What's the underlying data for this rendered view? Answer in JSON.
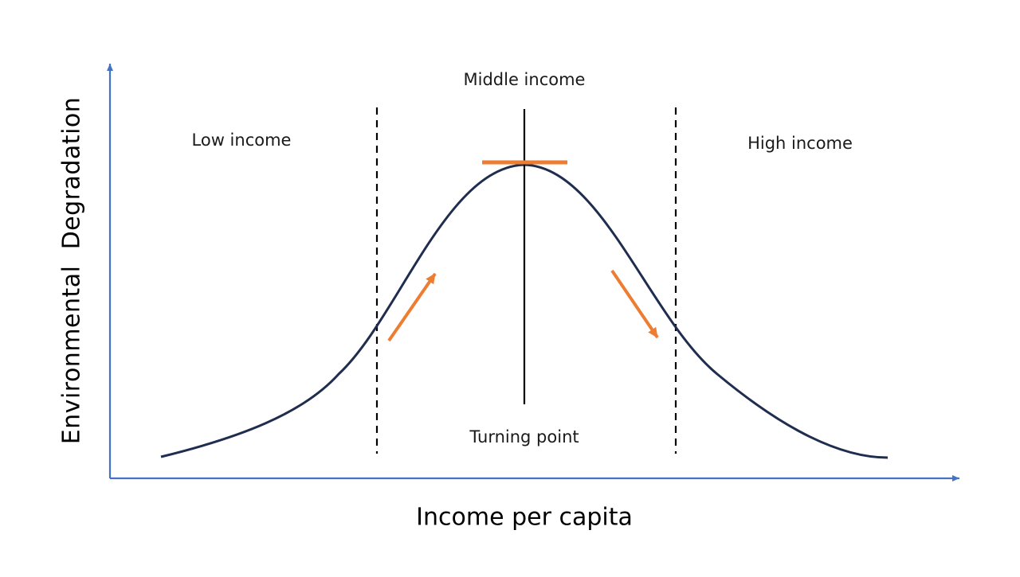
{
  "diagram": {
    "regions": {
      "low": "Low income",
      "middle": "Middle income",
      "high": "High income"
    },
    "turning_point_label": "Turning point",
    "x_axis_title": "Income per capita",
    "y_axis_title": "Environmental  Degradation"
  },
  "colors": {
    "axis": "#4472c4",
    "curve": "#1f2d4e",
    "accent": "#ed7d31",
    "divider": "#000000",
    "text": "#1a1a1a"
  }
}
